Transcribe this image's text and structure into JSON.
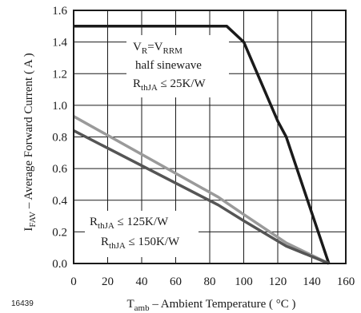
{
  "figure_id": "16439",
  "chart_data": {
    "type": "line",
    "xlabel": {
      "main": "T",
      "sub": "amb",
      "rest": " – Ambient Temperature ( °C )"
    },
    "ylabel": {
      "main": "I",
      "sub": "FAV",
      "rest": " – Average Forward Current ( A )"
    },
    "xlim": [
      0,
      160
    ],
    "ylim": [
      0.0,
      1.6
    ],
    "x_ticks": [
      "0",
      "20",
      "40",
      "60",
      "80",
      "100",
      "120",
      "140",
      "160"
    ],
    "y_ticks": [
      "0.0",
      "0.2",
      "0.4",
      "0.6",
      "0.8",
      "1.0",
      "1.2",
      "1.4",
      "1.6"
    ],
    "grid": true,
    "series": [
      {
        "color": "#1a1a1a",
        "x": [
          0,
          90,
          100,
          120,
          125,
          150
        ],
        "y": [
          1.5,
          1.5,
          1.4,
          0.9,
          0.8,
          0.0
        ]
      },
      {
        "color": "#9a9a9a",
        "x": [
          0,
          85,
          100,
          125,
          150
        ],
        "y": [
          0.93,
          0.42,
          0.31,
          0.13,
          0.0
        ]
      },
      {
        "color": "#555555",
        "x": [
          0,
          85,
          100,
          125,
          150
        ],
        "y": [
          0.84,
          0.37,
          0.27,
          0.11,
          0.0
        ]
      }
    ],
    "annotations": {
      "upper": {
        "line1": {
          "a": "V",
          "a_sub": "R",
          "b": "=V",
          "b_sub": "RRM"
        },
        "line2": "half sinewave",
        "line3": {
          "a": "R",
          "a_sub": "thJA",
          "b": " ≤ 25K/W"
        }
      },
      "lower": {
        "line1": {
          "a": "R",
          "a_sub": "thJA",
          "b": " ≤ 125K/W"
        },
        "line2": {
          "a": "R",
          "a_sub": "thJA",
          "b": " ≤ 150K/W"
        }
      }
    }
  }
}
